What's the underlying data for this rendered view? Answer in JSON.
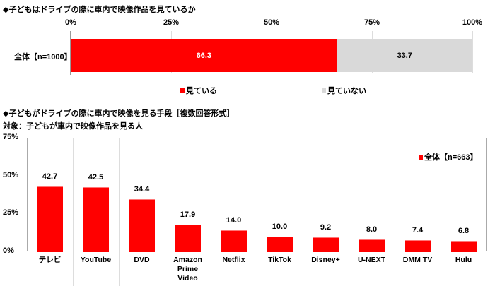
{
  "chart_data": [
    {
      "type": "bar",
      "orientation": "horizontal-stacked",
      "title": "◆子どもはドライブの際に車内で映像作品を見ているか",
      "categories": [
        "全体【n=1000】"
      ],
      "series": [
        {
          "name": "見ている",
          "values": [
            66.3
          ],
          "color": "#ff0000"
        },
        {
          "name": "見ていない",
          "values": [
            33.7
          ],
          "color": "#d9d9d9"
        }
      ],
      "xlim": [
        0,
        100
      ],
      "xticks": [
        "0%",
        "25%",
        "50%",
        "75%",
        "100%"
      ],
      "legend": "bottom"
    },
    {
      "type": "bar",
      "title": "◆子どもがドライブの際に車内で映像を見る手段［複数回答形式］",
      "subtitle": "対象：子どもが車内で映像作品を見る人",
      "categories": [
        "テレビ",
        "YouTube",
        "DVD",
        "Amazon Prime Video",
        "Netflix",
        "TikTok",
        "Disney+",
        "U-NEXT",
        "DMM TV",
        "Hulu"
      ],
      "series": [
        {
          "name": "全体【n=663】",
          "values": [
            42.7,
            42.5,
            34.4,
            17.9,
            14.0,
            10.0,
            9.2,
            8.0,
            7.4,
            6.8
          ],
          "color": "#ff0000"
        }
      ],
      "ylim": [
        0,
        75
      ],
      "yticks": [
        "0%",
        "25%",
        "50%",
        "75%"
      ],
      "legend": "top-right"
    }
  ]
}
